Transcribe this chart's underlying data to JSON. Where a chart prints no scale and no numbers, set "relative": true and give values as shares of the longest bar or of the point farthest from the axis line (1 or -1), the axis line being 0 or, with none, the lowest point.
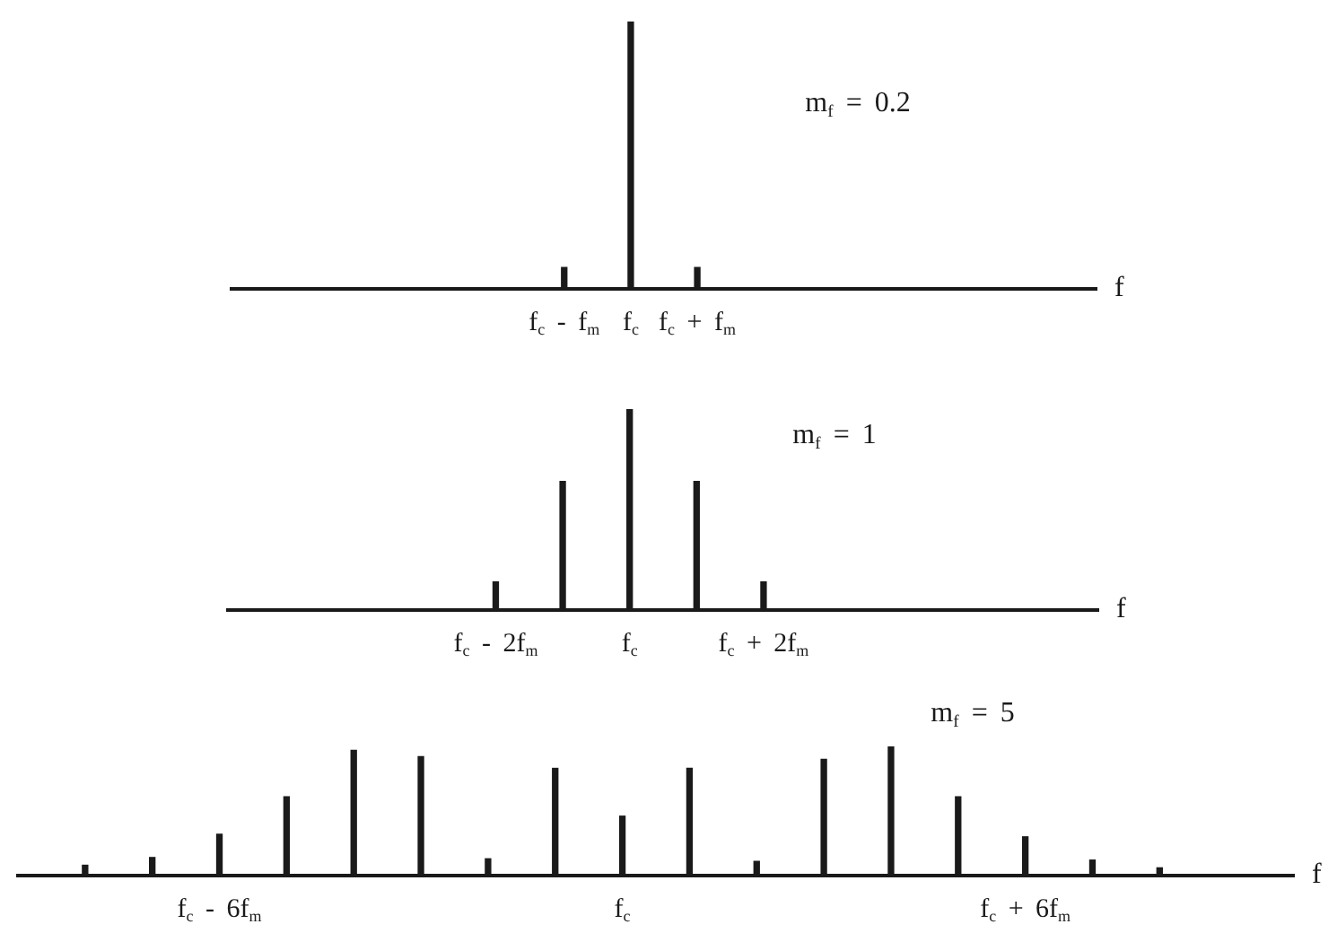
{
  "chart_data": [
    {
      "type": "bar",
      "relative": true,
      "xlabel": "f",
      "annotations": [
        "m$_{f}$ = 0.2"
      ],
      "color": "#1a1a1a",
      "categories": [
        null,
        null,
        null,
        null,
        null,
        "f$_{c}$ - f$_{m}$",
        "f$_{c}$",
        "f$_{c}$ + f$_{m}$",
        null,
        null,
        null,
        null,
        null,
        null
      ],
      "values": [
        null,
        null,
        null,
        null,
        null,
        0.08,
        1,
        0.08,
        null,
        null,
        null,
        null,
        null,
        null
      ]
    },
    {
      "type": "bar",
      "relative": true,
      "xlabel": "f",
      "annotations": [
        "m$_{f}$ = 1"
      ],
      "color": "#1a1a1a",
      "categories": [
        null,
        null,
        null,
        null,
        "f$_{c}$ - 2f$_{m}$",
        null,
        "f$_{c}$",
        null,
        "f$_{c}$ + 2f$_{m}$",
        null,
        null,
        null,
        null,
        null
      ],
      "values": [
        null,
        null,
        null,
        null,
        0.14,
        0.64,
        1,
        0.64,
        0.14,
        null,
        null,
        null,
        null,
        null
      ]
    },
    {
      "type": "bar",
      "relative": true,
      "xlabel": "f",
      "annotations": [
        "m$_{f}$ = 5"
      ],
      "color": "#1a1a1a",
      "categories": [
        null,
        null,
        null,
        "f$_{c}$ - 6f$_{m}$",
        null,
        null,
        null,
        null,
        null,
        "f$_{c}$",
        null,
        null,
        null,
        null,
        null,
        "f$_{c}$ + 6f$_{m}$",
        null,
        null,
        null,
        null
      ],
      "values": [
        null,
        0.08,
        0.14,
        0.32,
        0.61,
        0.97,
        0.92,
        0.13,
        0.83,
        0.46,
        0.83,
        0.11,
        0.9,
        1,
        0.61,
        0.3,
        0.12,
        0.06,
        null,
        null
      ]
    }
  ]
}
